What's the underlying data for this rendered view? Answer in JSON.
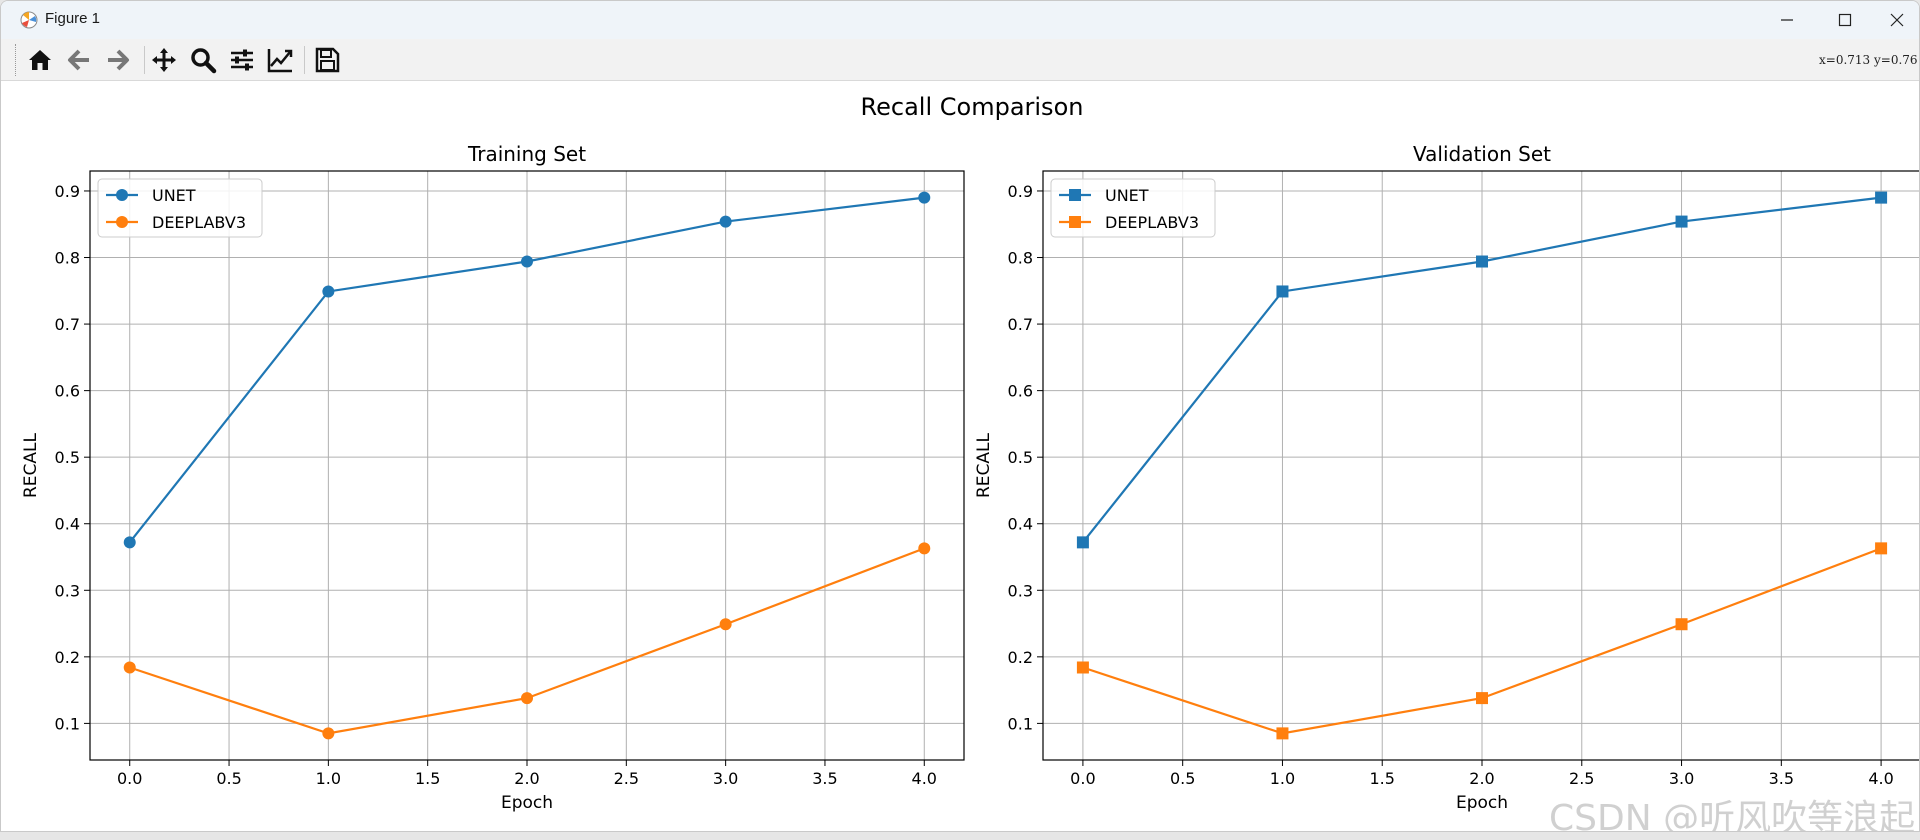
{
  "window": {
    "title": "Figure 1",
    "controls": {
      "minimize": "minimize",
      "maximize": "maximize",
      "close": "close"
    }
  },
  "toolbar": {
    "buttons": [
      {
        "name": "home",
        "icon": "home-icon"
      },
      {
        "name": "back",
        "icon": "arrow-left-icon"
      },
      {
        "name": "forward",
        "icon": "arrow-right-icon"
      },
      {
        "name": "pan",
        "icon": "move-icon"
      },
      {
        "name": "zoom",
        "icon": "magnifier-icon"
      },
      {
        "name": "configure-subplots",
        "icon": "sliders-icon"
      },
      {
        "name": "edit-axes",
        "icon": "line-chart-icon"
      },
      {
        "name": "save",
        "icon": "floppy-disk-icon"
      }
    ],
    "coords": "x=0.713  y=0.76"
  },
  "figure": {
    "suptitle": "Recall Comparison",
    "watermark": "CSDN @听风吹等浪起"
  },
  "chart_data": [
    {
      "type": "line",
      "title": "Training Set",
      "xlabel": "Epoch",
      "ylabel": "RECALL",
      "xlim": [
        -0.2,
        4.2
      ],
      "ylim": [
        0.045,
        0.93
      ],
      "xticks": [
        "0.0",
        "0.5",
        "1.0",
        "1.5",
        "2.0",
        "2.5",
        "3.0",
        "3.5",
        "4.0"
      ],
      "yticks": [
        "0.1",
        "0.2",
        "0.3",
        "0.4",
        "0.5",
        "0.6",
        "0.7",
        "0.8",
        "0.9"
      ],
      "grid": true,
      "legend": "upper left",
      "marker": "circle",
      "x": [
        0,
        1,
        2,
        3,
        4
      ],
      "series": [
        {
          "name": "UNET",
          "color": "#1f77b4",
          "values": [
            0.372,
            0.749,
            0.794,
            0.854,
            0.89
          ]
        },
        {
          "name": "DEEPLABV3",
          "color": "#ff7f0e",
          "values": [
            0.184,
            0.085,
            0.138,
            0.249,
            0.363
          ]
        }
      ]
    },
    {
      "type": "line",
      "title": "Validation Set",
      "xlabel": "Epoch",
      "ylabel": "RECALL",
      "xlim": [
        -0.2,
        4.2
      ],
      "ylim": [
        0.045,
        0.93
      ],
      "xticks": [
        "0.0",
        "0.5",
        "1.0",
        "1.5",
        "2.0",
        "2.5",
        "3.0",
        "3.5",
        "4.0"
      ],
      "yticks": [
        "0.1",
        "0.2",
        "0.3",
        "0.4",
        "0.5",
        "0.6",
        "0.7",
        "0.8",
        "0.9"
      ],
      "grid": true,
      "legend": "upper left",
      "marker": "square",
      "x": [
        0,
        1,
        2,
        3,
        4
      ],
      "series": [
        {
          "name": "UNET",
          "color": "#1f77b4",
          "values": [
            0.372,
            0.749,
            0.794,
            0.854,
            0.89
          ]
        },
        {
          "name": "DEEPLABV3",
          "color": "#ff7f0e",
          "values": [
            0.184,
            0.085,
            0.138,
            0.249,
            0.363
          ]
        }
      ]
    }
  ]
}
